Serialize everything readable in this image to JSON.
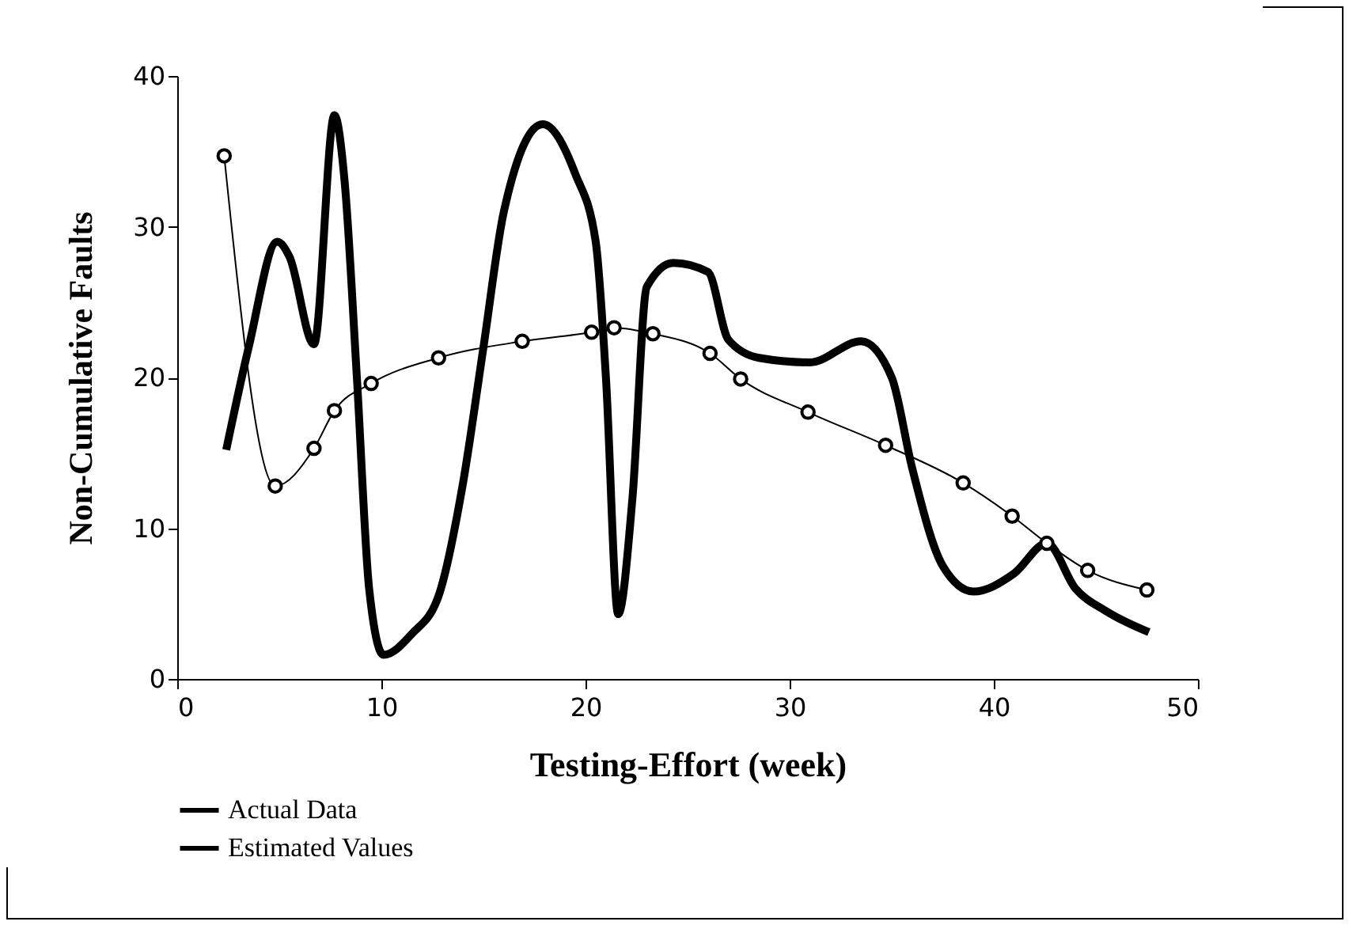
{
  "chart_data": {
    "type": "line",
    "xlabel": "Testing-Effort  (week)",
    "ylabel": "Non-Cumulative Faults",
    "xlim": [
      0,
      50
    ],
    "xticks": [
      0,
      10,
      20,
      30,
      40,
      50
    ],
    "ylim": [
      0,
      40
    ],
    "yticks": [
      0,
      10,
      20,
      30,
      40
    ],
    "grid": false,
    "legend": "bottom",
    "series": [
      {
        "name": "Actual Data",
        "color": "#000000",
        "marker": "none",
        "x": [
          2.4,
          3.5,
          4.9,
          5.5,
          6.7,
          7.7,
          8.2,
          8.8,
          9.4,
          10.1,
          11.5,
          12.8,
          14,
          15,
          16,
          17.9,
          19.5,
          20.5,
          21,
          21.6,
          22.3,
          23,
          24.3,
          26,
          27,
          28.5,
          31,
          33.5,
          35,
          36,
          37.5,
          39,
          41,
          42.6,
          44,
          45.5,
          47.6
        ],
        "values": [
          15.2,
          22,
          29,
          28,
          22.2,
          37.4,
          33,
          20,
          6,
          1.6,
          3,
          5.5,
          13,
          22,
          31,
          36.8,
          33.5,
          29,
          20,
          4.3,
          12,
          26,
          27.6,
          27,
          22.5,
          21.3,
          21,
          22.4,
          20,
          14,
          7.5,
          5.8,
          7,
          9,
          6,
          4.5,
          3.1
        ]
      },
      {
        "name": "Estimated Values",
        "color": "#000000",
        "marker": "circle",
        "x": [
          2.3,
          4.8,
          6.7,
          7.7,
          9.5,
          12.8,
          16.9,
          20.3,
          21.4,
          23.3,
          26.1,
          27.6,
          30.9,
          34.7,
          38.5,
          40.9,
          42.6,
          44.6,
          47.5
        ],
        "values": [
          34.7,
          12.8,
          15.3,
          17.8,
          19.6,
          21.3,
          22.4,
          23.0,
          23.3,
          22.9,
          21.6,
          19.9,
          17.7,
          15.5,
          13.0,
          10.8,
          9.0,
          7.2,
          5.9
        ]
      }
    ]
  }
}
